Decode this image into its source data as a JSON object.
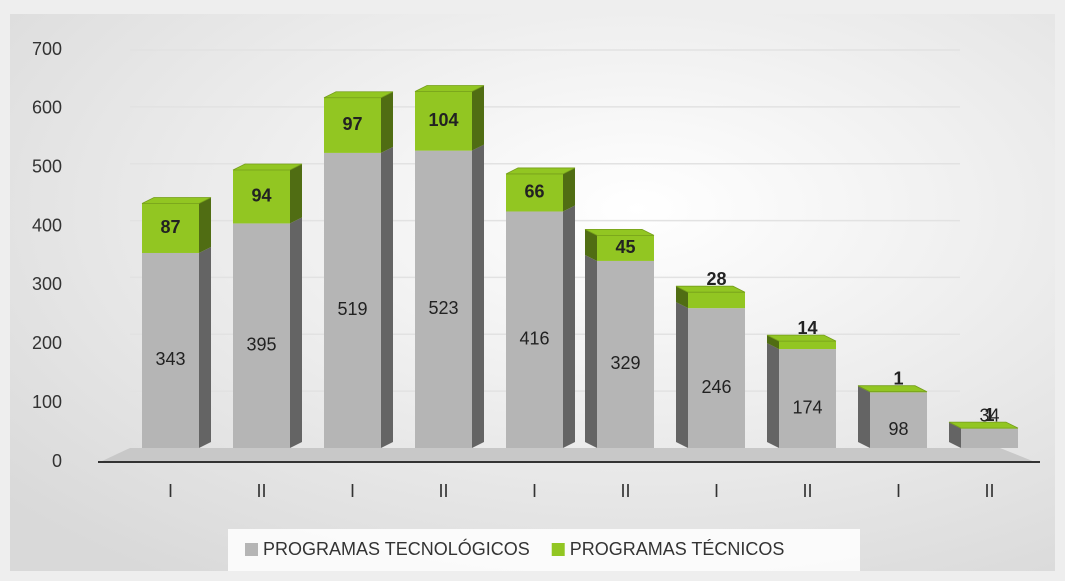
{
  "chart_data": {
    "type": "bar3d_stacked",
    "categories": [
      "I",
      "II",
      "I",
      "II",
      "I",
      "II",
      "I",
      "II",
      "I",
      "II"
    ],
    "series": [
      {
        "name": "PROGRAMAS TECNOLÓGICOS",
        "color": "#b5b5b5",
        "values": [
          343,
          395,
          519,
          523,
          416,
          329,
          246,
          174,
          98,
          34
        ]
      },
      {
        "name": "PROGRAMAS TÉCNICOS",
        "color": "#92c622",
        "values": [
          87,
          94,
          97,
          104,
          66,
          45,
          28,
          14,
          1,
          1
        ]
      }
    ],
    "ylim": [
      0,
      700
    ],
    "yticks": [
      0,
      100,
      200,
      300,
      400,
      500,
      600,
      700
    ],
    "grid": true,
    "legend": "bottom"
  }
}
